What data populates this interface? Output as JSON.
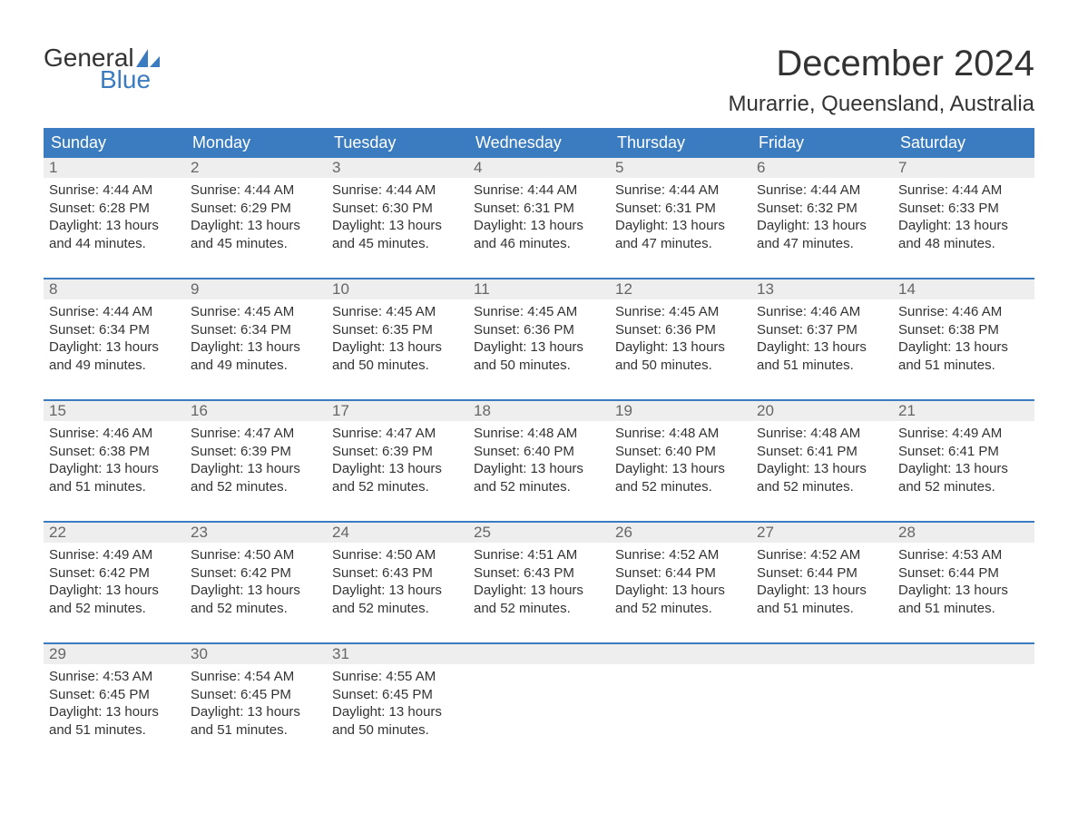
{
  "brand": {
    "line1": "General",
    "line2": "Blue",
    "line1_color": "#333333",
    "line2_color": "#3b7bbf",
    "sail_color": "#3b7bbf"
  },
  "page": {
    "title": "December 2024",
    "location": "Murarrie, Queensland, Australia",
    "title_fontsize": 40,
    "location_fontsize": 24,
    "text_color": "#333333"
  },
  "colors": {
    "header_bg": "#3b7bbf",
    "header_text": "#ffffff",
    "day_number_bg": "#eeeeee",
    "day_number_text": "#666666",
    "week_border": "#3b7bbf",
    "body_text": "#333333",
    "background": "#ffffff"
  },
  "calendar": {
    "day_names": [
      "Sunday",
      "Monday",
      "Tuesday",
      "Wednesday",
      "Thursday",
      "Friday",
      "Saturday"
    ],
    "weeks": [
      [
        {
          "n": "1",
          "sunrise": "Sunrise: 4:44 AM",
          "sunset": "Sunset: 6:28 PM",
          "dl1": "Daylight: 13 hours",
          "dl2": "and 44 minutes."
        },
        {
          "n": "2",
          "sunrise": "Sunrise: 4:44 AM",
          "sunset": "Sunset: 6:29 PM",
          "dl1": "Daylight: 13 hours",
          "dl2": "and 45 minutes."
        },
        {
          "n": "3",
          "sunrise": "Sunrise: 4:44 AM",
          "sunset": "Sunset: 6:30 PM",
          "dl1": "Daylight: 13 hours",
          "dl2": "and 45 minutes."
        },
        {
          "n": "4",
          "sunrise": "Sunrise: 4:44 AM",
          "sunset": "Sunset: 6:31 PM",
          "dl1": "Daylight: 13 hours",
          "dl2": "and 46 minutes."
        },
        {
          "n": "5",
          "sunrise": "Sunrise: 4:44 AM",
          "sunset": "Sunset: 6:31 PM",
          "dl1": "Daylight: 13 hours",
          "dl2": "and 47 minutes."
        },
        {
          "n": "6",
          "sunrise": "Sunrise: 4:44 AM",
          "sunset": "Sunset: 6:32 PM",
          "dl1": "Daylight: 13 hours",
          "dl2": "and 47 minutes."
        },
        {
          "n": "7",
          "sunrise": "Sunrise: 4:44 AM",
          "sunset": "Sunset: 6:33 PM",
          "dl1": "Daylight: 13 hours",
          "dl2": "and 48 minutes."
        }
      ],
      [
        {
          "n": "8",
          "sunrise": "Sunrise: 4:44 AM",
          "sunset": "Sunset: 6:34 PM",
          "dl1": "Daylight: 13 hours",
          "dl2": "and 49 minutes."
        },
        {
          "n": "9",
          "sunrise": "Sunrise: 4:45 AM",
          "sunset": "Sunset: 6:34 PM",
          "dl1": "Daylight: 13 hours",
          "dl2": "and 49 minutes."
        },
        {
          "n": "10",
          "sunrise": "Sunrise: 4:45 AM",
          "sunset": "Sunset: 6:35 PM",
          "dl1": "Daylight: 13 hours",
          "dl2": "and 50 minutes."
        },
        {
          "n": "11",
          "sunrise": "Sunrise: 4:45 AM",
          "sunset": "Sunset: 6:36 PM",
          "dl1": "Daylight: 13 hours",
          "dl2": "and 50 minutes."
        },
        {
          "n": "12",
          "sunrise": "Sunrise: 4:45 AM",
          "sunset": "Sunset: 6:36 PM",
          "dl1": "Daylight: 13 hours",
          "dl2": "and 50 minutes."
        },
        {
          "n": "13",
          "sunrise": "Sunrise: 4:46 AM",
          "sunset": "Sunset: 6:37 PM",
          "dl1": "Daylight: 13 hours",
          "dl2": "and 51 minutes."
        },
        {
          "n": "14",
          "sunrise": "Sunrise: 4:46 AM",
          "sunset": "Sunset: 6:38 PM",
          "dl1": "Daylight: 13 hours",
          "dl2": "and 51 minutes."
        }
      ],
      [
        {
          "n": "15",
          "sunrise": "Sunrise: 4:46 AM",
          "sunset": "Sunset: 6:38 PM",
          "dl1": "Daylight: 13 hours",
          "dl2": "and 51 minutes."
        },
        {
          "n": "16",
          "sunrise": "Sunrise: 4:47 AM",
          "sunset": "Sunset: 6:39 PM",
          "dl1": "Daylight: 13 hours",
          "dl2": "and 52 minutes."
        },
        {
          "n": "17",
          "sunrise": "Sunrise: 4:47 AM",
          "sunset": "Sunset: 6:39 PM",
          "dl1": "Daylight: 13 hours",
          "dl2": "and 52 minutes."
        },
        {
          "n": "18",
          "sunrise": "Sunrise: 4:48 AM",
          "sunset": "Sunset: 6:40 PM",
          "dl1": "Daylight: 13 hours",
          "dl2": "and 52 minutes."
        },
        {
          "n": "19",
          "sunrise": "Sunrise: 4:48 AM",
          "sunset": "Sunset: 6:40 PM",
          "dl1": "Daylight: 13 hours",
          "dl2": "and 52 minutes."
        },
        {
          "n": "20",
          "sunrise": "Sunrise: 4:48 AM",
          "sunset": "Sunset: 6:41 PM",
          "dl1": "Daylight: 13 hours",
          "dl2": "and 52 minutes."
        },
        {
          "n": "21",
          "sunrise": "Sunrise: 4:49 AM",
          "sunset": "Sunset: 6:41 PM",
          "dl1": "Daylight: 13 hours",
          "dl2": "and 52 minutes."
        }
      ],
      [
        {
          "n": "22",
          "sunrise": "Sunrise: 4:49 AM",
          "sunset": "Sunset: 6:42 PM",
          "dl1": "Daylight: 13 hours",
          "dl2": "and 52 minutes."
        },
        {
          "n": "23",
          "sunrise": "Sunrise: 4:50 AM",
          "sunset": "Sunset: 6:42 PM",
          "dl1": "Daylight: 13 hours",
          "dl2": "and 52 minutes."
        },
        {
          "n": "24",
          "sunrise": "Sunrise: 4:50 AM",
          "sunset": "Sunset: 6:43 PM",
          "dl1": "Daylight: 13 hours",
          "dl2": "and 52 minutes."
        },
        {
          "n": "25",
          "sunrise": "Sunrise: 4:51 AM",
          "sunset": "Sunset: 6:43 PM",
          "dl1": "Daylight: 13 hours",
          "dl2": "and 52 minutes."
        },
        {
          "n": "26",
          "sunrise": "Sunrise: 4:52 AM",
          "sunset": "Sunset: 6:44 PM",
          "dl1": "Daylight: 13 hours",
          "dl2": "and 52 minutes."
        },
        {
          "n": "27",
          "sunrise": "Sunrise: 4:52 AM",
          "sunset": "Sunset: 6:44 PM",
          "dl1": "Daylight: 13 hours",
          "dl2": "and 51 minutes."
        },
        {
          "n": "28",
          "sunrise": "Sunrise: 4:53 AM",
          "sunset": "Sunset: 6:44 PM",
          "dl1": "Daylight: 13 hours",
          "dl2": "and 51 minutes."
        }
      ],
      [
        {
          "n": "29",
          "sunrise": "Sunrise: 4:53 AM",
          "sunset": "Sunset: 6:45 PM",
          "dl1": "Daylight: 13 hours",
          "dl2": "and 51 minutes."
        },
        {
          "n": "30",
          "sunrise": "Sunrise: 4:54 AM",
          "sunset": "Sunset: 6:45 PM",
          "dl1": "Daylight: 13 hours",
          "dl2": "and 51 minutes."
        },
        {
          "n": "31",
          "sunrise": "Sunrise: 4:55 AM",
          "sunset": "Sunset: 6:45 PM",
          "dl1": "Daylight: 13 hours",
          "dl2": "and 50 minutes."
        },
        {
          "empty": true
        },
        {
          "empty": true
        },
        {
          "empty": true
        },
        {
          "empty": true
        }
      ]
    ]
  }
}
